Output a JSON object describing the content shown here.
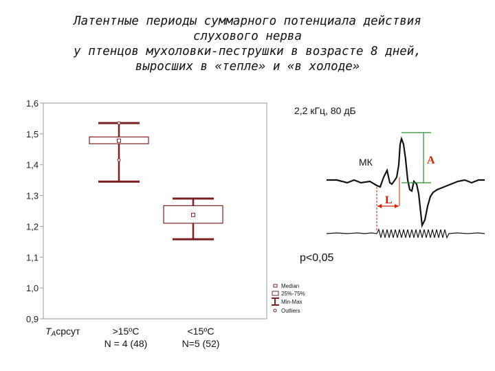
{
  "title_lines": [
    "Латентные периоды суммарного потенциала действия",
    "слухового нерва",
    "у птенцов мухоловки-пеструшки в возрасте 8 дней,",
    "выросших в «тепле» и «в холоде»"
  ],
  "colors": {
    "box_line": "#7a1f22",
    "axis": "#808080",
    "green": "#2a8f2a",
    "red": "#cc2200"
  },
  "chart_data": {
    "type": "boxplot",
    "ylim": [
      0.9,
      1.6
    ],
    "yticks": [
      "0,9",
      "1,0",
      "1,1",
      "1,2",
      "1,3",
      "1,4",
      "1,5",
      "1,6"
    ],
    "ytick_values": [
      0.9,
      1.0,
      1.1,
      1.2,
      1.3,
      1.4,
      1.5,
      1.6
    ],
    "x_axis_label": "T",
    "x_axis_label_sub": "A",
    "x_axis_label_rest": "срсут",
    "categories": [
      {
        "line1": ">15ºC",
        "line2": "N = 4 (48)"
      },
      {
        "line1": "<15ºC",
        "line2": "N=5 (52)"
      }
    ],
    "series": [
      {
        "min": 1.345,
        "q1": 1.468,
        "median": 1.478,
        "q3": 1.49,
        "max": 1.535,
        "outliers": [
          1.535,
          1.415
        ]
      },
      {
        "min": 1.158,
        "q1": 1.21,
        "median": 1.237,
        "q3": 1.267,
        "max": 1.29,
        "outliers": []
      }
    ],
    "legend": [
      "Median",
      "25%-75%",
      "Min-Max",
      "Outliers"
    ],
    "annotations": {
      "stimulus": "2,2 кГц, 80 дБ",
      "peak_label": "МК",
      "amplitude_label": "A",
      "latency_label": "L",
      "p_value": "p<0,05"
    }
  }
}
